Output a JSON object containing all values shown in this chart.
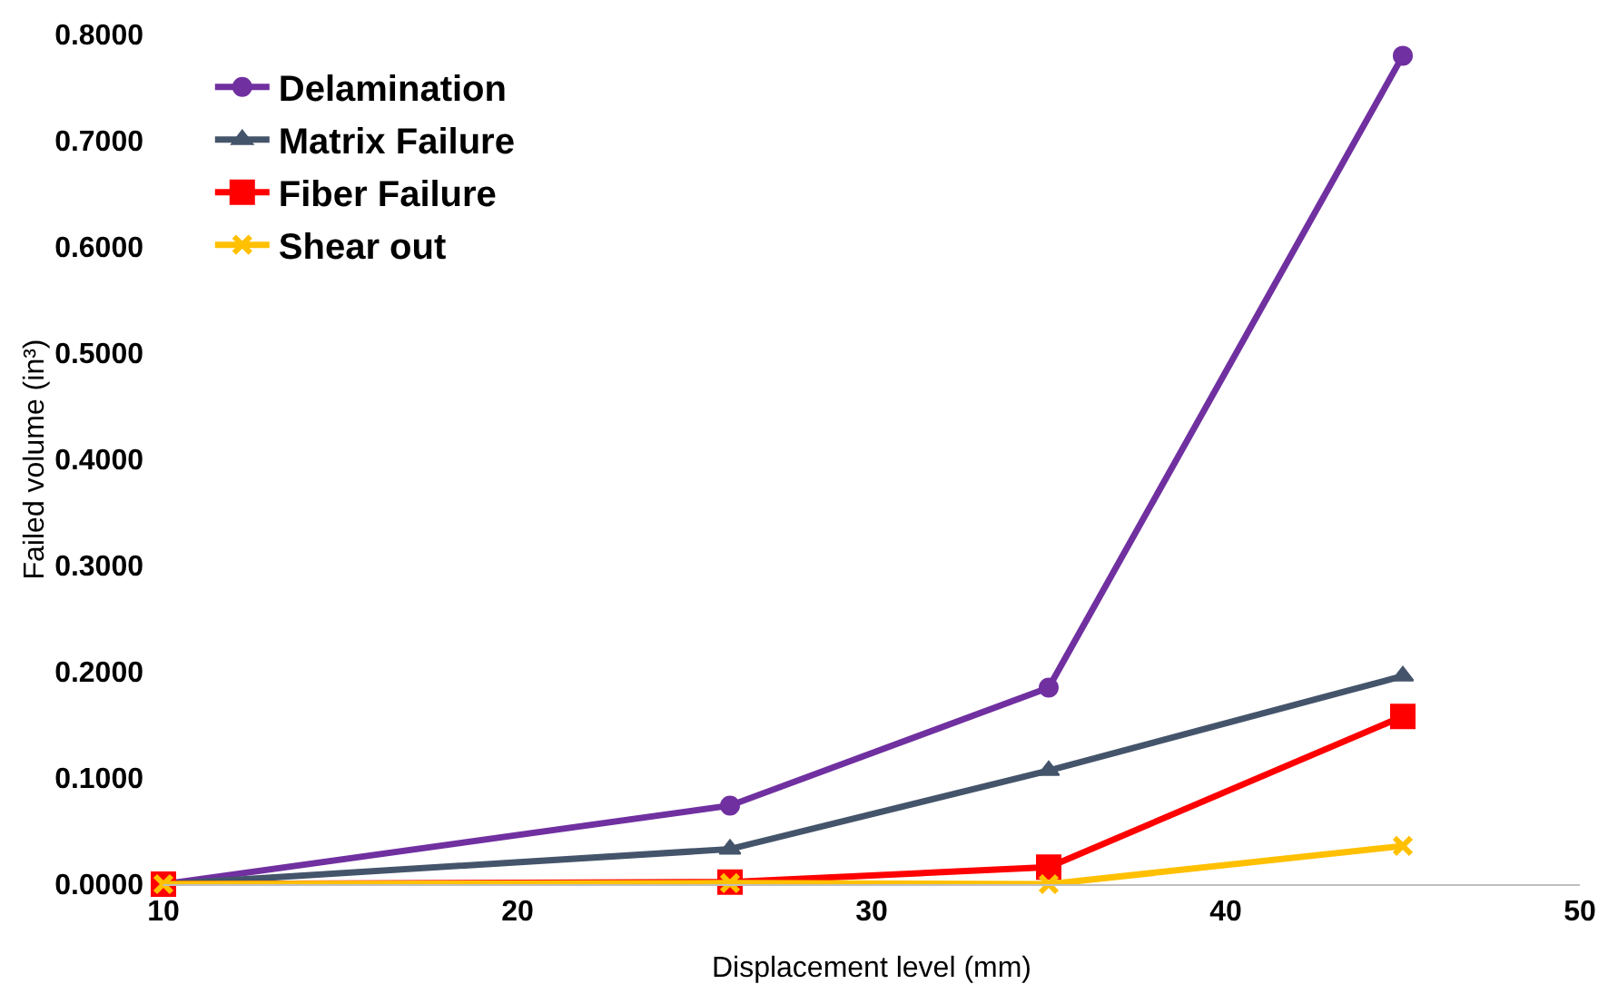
{
  "chart_data": {
    "type": "line",
    "xlabel": "Displacement level (mm)",
    "ylabel": "Failed volume (in³)",
    "x": [
      10,
      26,
      35,
      45
    ],
    "series": [
      {
        "name": "Delamination",
        "color": "#7030a0",
        "marker": "circle",
        "values": [
          0,
          0.074,
          0.185,
          0.78
        ]
      },
      {
        "name": "Matrix Failure",
        "color": "#44546a",
        "marker": "triangle",
        "values": [
          0,
          0.033,
          0.107,
          0.196
        ]
      },
      {
        "name": "Fiber Failure",
        "color": "#ff0000",
        "marker": "square",
        "values": [
          0,
          0.002,
          0.016,
          0.158
        ]
      },
      {
        "name": "Shear out",
        "color": "#ffc000",
        "marker": "cross",
        "values": [
          0,
          0.001,
          0,
          0.036
        ]
      }
    ],
    "xlim": [
      10,
      50
    ],
    "xticks": [
      10,
      20,
      30,
      40,
      50
    ],
    "ylim": [
      0,
      0.8
    ],
    "yticks": [
      {
        "value": 0,
        "label": "0.0000"
      },
      {
        "value": 0.1,
        "label": "0.1000"
      },
      {
        "value": 0.2,
        "label": "0.2000"
      },
      {
        "value": 0.3,
        "label": "0.3000"
      },
      {
        "value": 0.4,
        "label": "0.4000"
      },
      {
        "value": 0.5,
        "label": "0.5000"
      },
      {
        "value": 0.6,
        "label": "0.6000"
      },
      {
        "value": 0.7,
        "label": "0.7000"
      },
      {
        "value": 0.8,
        "label": "0.8000"
      }
    ],
    "grid": false,
    "legend": "top left",
    "line_style": "solid"
  }
}
